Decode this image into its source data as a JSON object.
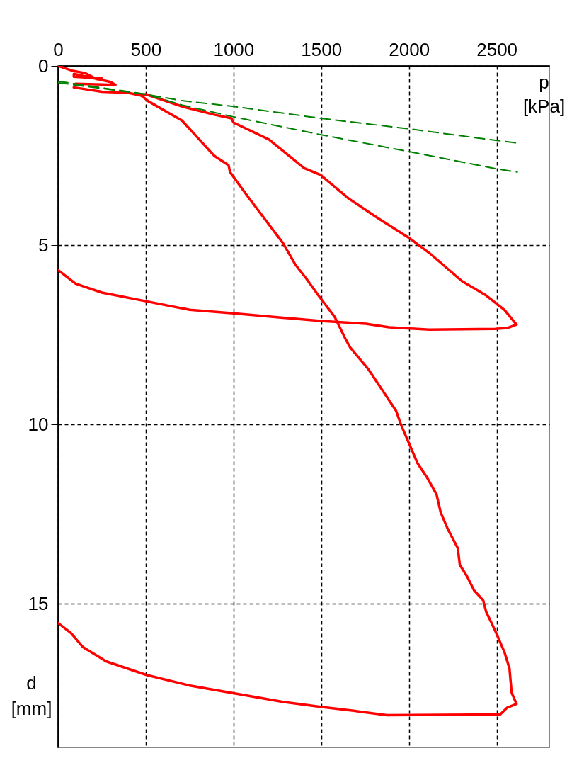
{
  "chart_data": {
    "type": "line",
    "xlabel": "p [kPa]",
    "ylabel": "d [mm]",
    "xlim": [
      0,
      2800
    ],
    "ylim": [
      19,
      0
    ],
    "xticks": [
      0,
      500,
      1000,
      1500,
      2000,
      2500
    ],
    "yticks": [
      0,
      5,
      10,
      15
    ],
    "grid": true,
    "line_style": "solid",
    "series": [
      {
        "color": "#ff0000",
        "x": [
          0,
          85,
          153,
          222,
          250,
          90,
          90,
          300,
          327,
          100,
          90,
          250,
          400,
          476,
          500,
          706,
          891,
          988,
          1000,
          1202,
          1403,
          1496,
          1657,
          1819,
          2008,
          2117,
          2302,
          2440,
          2544,
          2613,
          2560,
          2492,
          2117,
          1887,
          1754,
          1496,
          1335,
          1282,
          1000,
          750,
          500,
          250,
          100,
          0
        ],
        "values": [
          0,
          0.14,
          0.2,
          0.37,
          0.35,
          0.3,
          0.22,
          0.45,
          0.53,
          0.5,
          0.6,
          0.72,
          0.75,
          0.83,
          0.79,
          1.13,
          1.36,
          1.46,
          1.58,
          2.05,
          2.85,
          3.04,
          3.7,
          4.23,
          4.82,
          5.22,
          6.0,
          6.4,
          6.8,
          7.21,
          7.31,
          7.33,
          7.35,
          7.29,
          7.19,
          7.11,
          7.04,
          7.02,
          6.9,
          6.8,
          6.56,
          6.32,
          6.07,
          5.69
        ]
      },
      {
        "color": "#ff0000",
        "x": [
          476,
          516,
          706,
          891,
          972,
          980,
          1081,
          1282,
          1351,
          1415,
          1484,
          1577,
          1637,
          1665,
          1766,
          1847,
          1927,
          1956,
          2008,
          2048,
          2101,
          2157,
          2181,
          2222,
          2278,
          2290,
          2331,
          2371,
          2423,
          2440,
          2492,
          2544,
          2573,
          2585,
          2613,
          2560,
          2520,
          1875,
          1685,
          1496,
          1282,
          1000,
          746,
          504,
          274,
          141,
          73,
          0
        ],
        "values": [
          0.83,
          0.99,
          1.52,
          2.51,
          2.77,
          2.96,
          3.64,
          4.94,
          5.53,
          5.93,
          6.4,
          7.0,
          7.6,
          7.85,
          8.44,
          9.03,
          9.62,
          10.02,
          10.61,
          11.07,
          11.46,
          11.94,
          12.45,
          12.92,
          13.44,
          13.91,
          14.23,
          14.62,
          14.9,
          15.22,
          15.75,
          16.34,
          16.8,
          17.47,
          17.79,
          17.89,
          18.08,
          18.1,
          17.98,
          17.87,
          17.73,
          17.49,
          17.27,
          16.98,
          16.6,
          16.2,
          15.81,
          15.53
        ]
      },
      {
        "color": "#008000",
        "line_style": "dashed",
        "x": [
          0,
          500,
          706,
          1000,
          1496,
          2008,
          2500,
          2617
        ],
        "values": [
          0.43,
          0.79,
          0.97,
          1.13,
          1.46,
          1.76,
          2.08,
          2.15
        ]
      },
      {
        "color": "#008000",
        "line_style": "dashed",
        "x": [
          0,
          500,
          706,
          1000,
          1500,
          2000,
          2500,
          2617
        ],
        "values": [
          0.47,
          0.79,
          1.09,
          1.42,
          1.92,
          2.39,
          2.87,
          2.96
        ]
      }
    ]
  }
}
